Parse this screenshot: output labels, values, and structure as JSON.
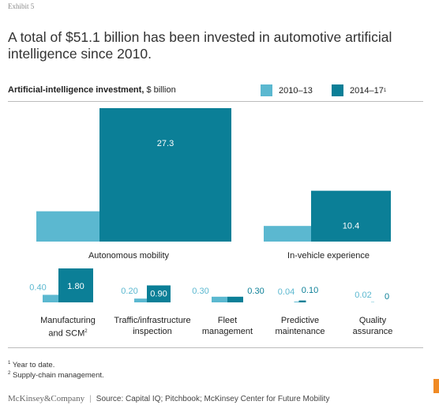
{
  "exhibit": "Exhibit 5",
  "headline": "A total of $51.1 billion has been invested in automotive artificial intelligence since 2010.",
  "chart_data": {
    "type": "bar",
    "title_bold": "Artificial-intelligence investment,",
    "title_unit": "$ billion",
    "legend": [
      {
        "label": "2010–13",
        "color": "#5bb8d0"
      },
      {
        "label": "2014–17",
        "sup": "1",
        "color": "#0b7f97"
      }
    ],
    "groups": [
      {
        "label": "Autonomous mobility",
        "values": [
          6.2,
          27.3
        ],
        "value_labels": [
          "6.2",
          "27.3"
        ]
      },
      {
        "label": "In-vehicle experience",
        "values": [
          3.2,
          10.4
        ],
        "value_labels": [
          "3.2",
          "10.4"
        ]
      }
    ],
    "small_categories": [
      {
        "line1": "Manufacturing",
        "line2": "and SCM",
        "sup": "2",
        "values": [
          0.4,
          1.8
        ],
        "value_labels": [
          "0.40",
          "1.80"
        ]
      },
      {
        "line1": "Traffic/infrastructure",
        "line2": "inspection",
        "values": [
          0.2,
          0.9
        ],
        "value_labels": [
          "0.20",
          "0.90"
        ]
      },
      {
        "line1": "Fleet",
        "line2": "management",
        "values": [
          0.3,
          0.3
        ],
        "value_labels": [
          "0.30",
          "0.30"
        ]
      },
      {
        "line1": "Predictive",
        "line2": "maintenance",
        "values": [
          0.04,
          0.1
        ],
        "value_labels": [
          "0.04",
          "0.10"
        ]
      },
      {
        "line1": "Quality",
        "line2": "assurance",
        "values": [
          0.02,
          0
        ],
        "value_labels": [
          "0.02",
          "0"
        ]
      }
    ]
  },
  "footnotes": {
    "f1": "Year to date.",
    "f2": "Supply-chain management."
  },
  "footer": {
    "brand": "McKinsey&Company",
    "source": "Source: Capital IQ; Pitchbook; McKinsey Center for Future Mobility"
  }
}
